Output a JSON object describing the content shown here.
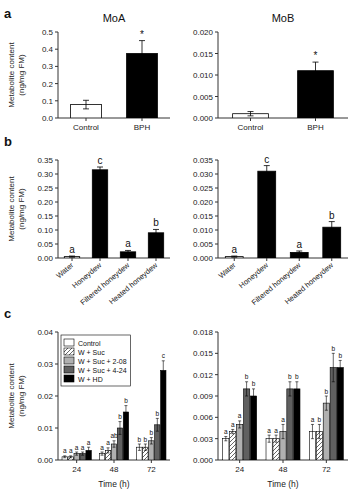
{
  "chart_data": [
    {
      "type": "bar",
      "title": "MoA",
      "panel_label": "a",
      "categories": [
        "Control",
        "BPH"
      ],
      "values": [
        0.078,
        0.375
      ],
      "errors": [
        0.025,
        0.075
      ],
      "colors": [
        "white",
        "black"
      ],
      "annotations": [
        null,
        "*"
      ],
      "ylim": [
        0,
        0.5
      ],
      "yticks": [
        {
          "value": 0,
          "label": "0.0"
        },
        0.1,
        0.2,
        0.3,
        0.4,
        0.5
      ],
      "ylabel": "Metabolite content\n(ng/mg FM)"
    },
    {
      "type": "bar",
      "title": "MoB",
      "categories": [
        "Control",
        "BPH"
      ],
      "values": [
        0.001,
        0.011
      ],
      "errors": [
        0.0005,
        0.002
      ],
      "colors": [
        "white",
        "black"
      ],
      "annotations": [
        null,
        "*"
      ],
      "ylim": [
        0,
        0.02
      ],
      "yticks": [
        {
          "value": 0,
          "label": "0.000"
        },
        0.005,
        {
          "value": 0.01,
          "label": "0.010"
        },
        0.015,
        {
          "value": 0.02,
          "label": "0.020"
        }
      ]
    },
    {
      "type": "bar",
      "panel_label": "b",
      "categories": [
        "Water",
        "Honeydew",
        "Filtered honeydew",
        "Heated honeydew"
      ],
      "values": [
        0.005,
        0.315,
        0.022,
        0.09
      ],
      "errors": [
        0.002,
        0.01,
        0.005,
        0.012
      ],
      "colors": [
        "white",
        "black",
        "black",
        "black"
      ],
      "annotations": [
        "a",
        "c",
        "a",
        "b"
      ],
      "ylim": [
        0,
        0.35
      ],
      "yticks": [
        {
          "value": 0.0,
          "label": "0.00"
        },
        0.05,
        {
          "value": 0.1,
          "label": "0.10"
        },
        0.15,
        {
          "value": 0.2,
          "label": "0.20"
        },
        0.25,
        {
          "value": 0.3,
          "label": "0.30"
        },
        0.35
      ],
      "ylabel": "Metabolite content\n(ng/mg FM)"
    },
    {
      "type": "bar",
      "categories": [
        "Water",
        "Honeydew",
        "Filtered honeydew",
        "Heated honeydew"
      ],
      "values": [
        0.0005,
        0.031,
        0.002,
        0.011
      ],
      "errors": [
        0.0002,
        0.002,
        0.0005,
        0.002
      ],
      "colors": [
        "white",
        "black",
        "black",
        "black"
      ],
      "annotations": [
        "a",
        "c",
        "a",
        "b"
      ],
      "ylim": [
        0,
        0.035
      ],
      "yticks": [
        {
          "value": 0.0,
          "label": "0.000"
        },
        0.005,
        {
          "value": 0.01,
          "label": "0.010"
        },
        0.015,
        {
          "value": 0.02,
          "label": "0.020"
        },
        0.025,
        {
          "value": 0.03,
          "label": "0.030"
        },
        0.035
      ]
    },
    {
      "type": "bar",
      "panel_label": "c",
      "categories": [
        "24",
        "48",
        "72"
      ],
      "series": [
        {
          "name": "Control",
          "color": "white",
          "values": [
            0.001,
            0.002,
            0.004
          ],
          "errors": [
            0.0003,
            0.0005,
            0.001
          ],
          "annotations": [
            "a",
            "a",
            "b"
          ]
        },
        {
          "name": "W + Suc",
          "color": "white",
          "hatch": "///",
          "values": [
            0.001,
            0.003,
            0.004
          ],
          "errors": [
            0.0003,
            0.0008,
            0.001
          ],
          "annotations": [
            "a",
            "a",
            "b"
          ]
        },
        {
          "name": "W + Suc + 2-08",
          "color": "#b0b0b0",
          "values": [
            0.002,
            0.005,
            0.006
          ],
          "errors": [
            0.0005,
            0.001,
            0.001
          ],
          "annotations": [
            "a",
            "ab",
            "b"
          ]
        },
        {
          "name": "W + Suc + 4-24",
          "color": "#606060",
          "values": [
            0.002,
            0.01,
            0.011
          ],
          "errors": [
            0.0005,
            0.002,
            0.002
          ],
          "annotations": [
            "a",
            "b",
            "b"
          ]
        },
        {
          "name": "W + HD",
          "color": "black",
          "values": [
            0.003,
            0.015,
            0.028
          ],
          "errors": [
            0.001,
            0.002,
            0.003
          ],
          "annotations": [
            "a",
            "b",
            "c"
          ]
        }
      ],
      "legend": "upper left",
      "ylim": [
        0,
        0.04
      ],
      "yticks": [
        {
          "value": 0.0,
          "label": "0.00"
        },
        0.01,
        0.02,
        0.03,
        0.04
      ],
      "ylabel": "Metabolite content\n(ng/mg FM)",
      "xlabel": "Time (h)"
    },
    {
      "type": "bar",
      "categories": [
        "24",
        "48",
        "72"
      ],
      "series": [
        {
          "color": "white",
          "values": [
            0.003,
            0.003,
            0.004
          ],
          "errors": [
            0.0003,
            0.0005,
            0.001
          ],
          "annotations": [
            "a",
            "a",
            "a"
          ]
        },
        {
          "color": "white",
          "hatch": "///",
          "values": [
            0.004,
            0.003,
            0.004
          ],
          "errors": [
            0.0003,
            0.0005,
            0.001
          ],
          "annotations": [
            "a",
            "a",
            "b"
          ]
        },
        {
          "color": "#b0b0b0",
          "values": [
            0.005,
            0.004,
            0.008
          ],
          "errors": [
            0.0005,
            0.001,
            0.001
          ],
          "annotations": [
            "a",
            "a",
            "b"
          ]
        },
        {
          "color": "#606060",
          "values": [
            0.01,
            0.01,
            0.013
          ],
          "errors": [
            0.001,
            0.001,
            0.002
          ],
          "annotations": [
            "b",
            "b",
            "b"
          ]
        },
        {
          "color": "black",
          "values": [
            0.009,
            0.01,
            0.013
          ],
          "errors": [
            0.001,
            0.001,
            0.001
          ],
          "annotations": [
            "b",
            "b",
            "b"
          ]
        }
      ],
      "ylim": [
        0,
        0.018
      ],
      "yticks": [
        {
          "value": 0.0,
          "label": "0.000"
        },
        0.003,
        0.006,
        0.009,
        0.012,
        0.015,
        0.018
      ],
      "xlabel": "Time (h)"
    }
  ]
}
